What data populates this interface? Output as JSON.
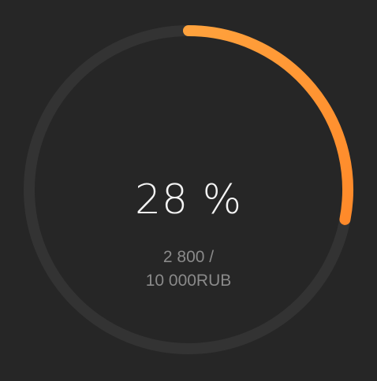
{
  "progress": {
    "value": 0.28,
    "percent_label": "28 %",
    "amount_line1": "2 800 /",
    "amount_line2": "10 000RUB"
  },
  "colors": {
    "background": "#262626",
    "track": "#333333",
    "progress_start": "#ffa23d",
    "progress_end": "#ff8a2a",
    "percent_text": "#f4f4f4",
    "amount_text": "#8a8a8a"
  }
}
